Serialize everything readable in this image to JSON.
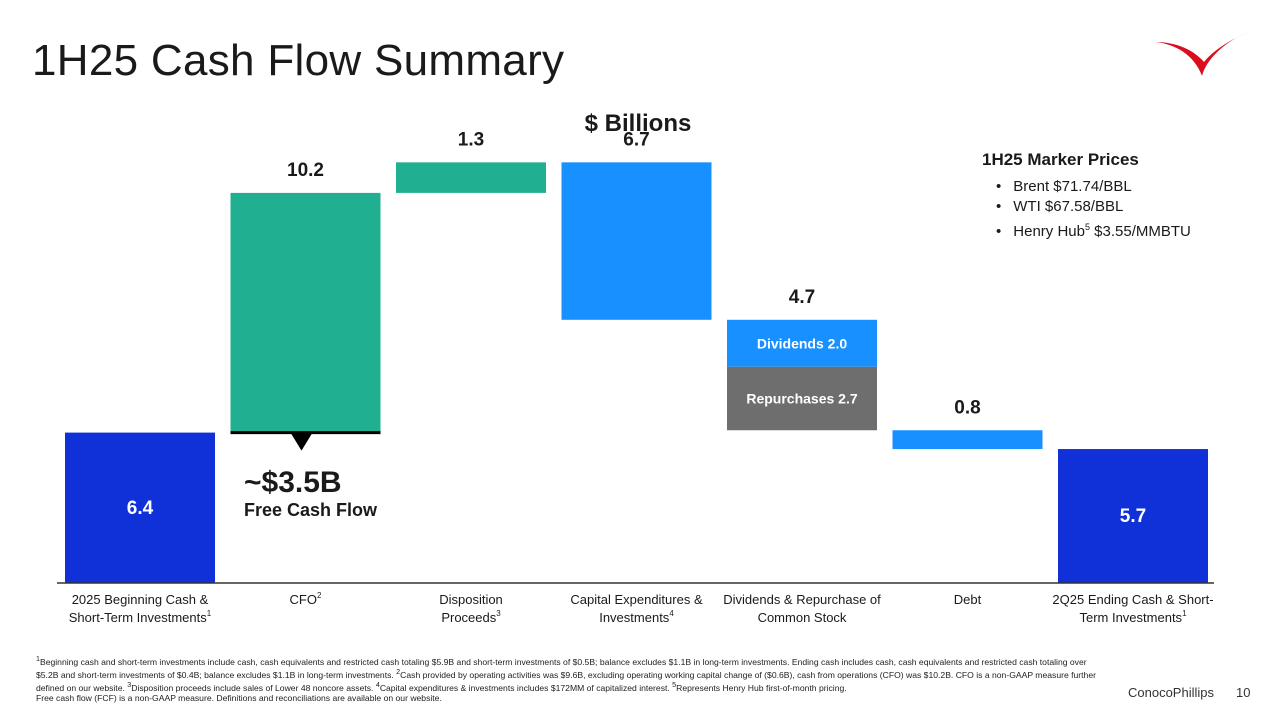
{
  "page": {
    "title": "1H25 Cash Flow Summary",
    "brand": "ConocoPhillips",
    "page_number": "10"
  },
  "colors": {
    "balance": "#1030d8",
    "inflow": "#20af90",
    "outflow": "#1890ff",
    "repurchases": "#6e6e6e",
    "logo": "#dc0d1e"
  },
  "marker_prices": {
    "heading": "1H25 Marker Prices",
    "items": [
      {
        "text": "Brent $71.74/BBL",
        "sup": ""
      },
      {
        "text": "WTI $67.58/BBL",
        "sup": ""
      },
      {
        "text": "Henry Hub",
        "sup": "5",
        "after": " $3.55/MMBTU"
      }
    ]
  },
  "callout": {
    "amount": "~$3.5B",
    "label": "Free Cash Flow"
  },
  "chart_data": {
    "type": "waterfall",
    "title": "$ Billions",
    "bars": [
      {
        "category": [
          "2025 Beginning Cash &",
          "Short-Term Investments"
        ],
        "sup": "1",
        "label": "6.4",
        "start": 0,
        "end": 6.4,
        "kind": "balance",
        "label_pos": "inside"
      },
      {
        "category": [
          "CFO"
        ],
        "sup": "2",
        "label": "10.2",
        "start": 6.4,
        "end": 16.6,
        "kind": "inflow",
        "label_pos": "above"
      },
      {
        "category": [
          "Disposition",
          "Proceeds"
        ],
        "sup": "3",
        "label": "1.3",
        "start": 16.6,
        "end": 17.9,
        "kind": "inflow",
        "label_pos": "above"
      },
      {
        "category": [
          "Capital Expenditures &",
          "Investments"
        ],
        "sup": "4",
        "label": "6.7",
        "start": 17.9,
        "end": 11.2,
        "kind": "outflow",
        "label_pos": "above"
      },
      {
        "category": [
          "Dividends & Repurchase of",
          "Common Stock"
        ],
        "sup": "",
        "label": "4.7",
        "start": 11.2,
        "end": 6.5,
        "kind": "stacked",
        "label_pos": "above",
        "segments": [
          {
            "name": "Dividends",
            "value": 2.0,
            "label": "Dividends 2.0",
            "kind": "outflow"
          },
          {
            "name": "Repurchases",
            "value": 2.7,
            "label": "Repurchases 2.7",
            "kind": "repurchases"
          }
        ]
      },
      {
        "category": [
          "Debt"
        ],
        "sup": "",
        "label": "0.8",
        "start": 6.5,
        "end": 5.7,
        "kind": "outflow",
        "label_pos": "above"
      },
      {
        "category": [
          "2Q25 Ending Cash & Short-",
          "Term Investments"
        ],
        "sup": "1",
        "label": "5.7",
        "start": 0,
        "end": 5.7,
        "kind": "balance",
        "label_pos": "inside"
      }
    ]
  },
  "footnotes": [
    {
      "sup": "1",
      "text": "Beginning cash and short-term investments include cash, cash equivalents and restricted cash totaling $5.9B and short-term investments of $0.5B; balance excludes $1.1B in long-term investments. Ending cash includes cash, cash equivalents and restricted cash totaling over $5.2B and short-term investments of $0.4B; balance excludes $1.1B in long-term investments. "
    },
    {
      "sup": "2",
      "text": "Cash provided by operating activities was $9.6B, excluding operating working capital change of ($0.6B), cash from operations (CFO) was $10.2B. CFO is a non-GAAP measure further defined on our website. "
    },
    {
      "sup": "3",
      "text": "Disposition proceeds include sales of Lower 48 noncore assets. "
    },
    {
      "sup": "4",
      "text": "Capital expenditures & investments includes $172MM of capitalized interest. "
    },
    {
      "sup": "5",
      "text": "Represents Henry Hub first-of-month pricing."
    }
  ],
  "footnote_last": "Free cash flow (FCF) is a non-GAAP measure. Definitions and reconciliations are available on our website."
}
